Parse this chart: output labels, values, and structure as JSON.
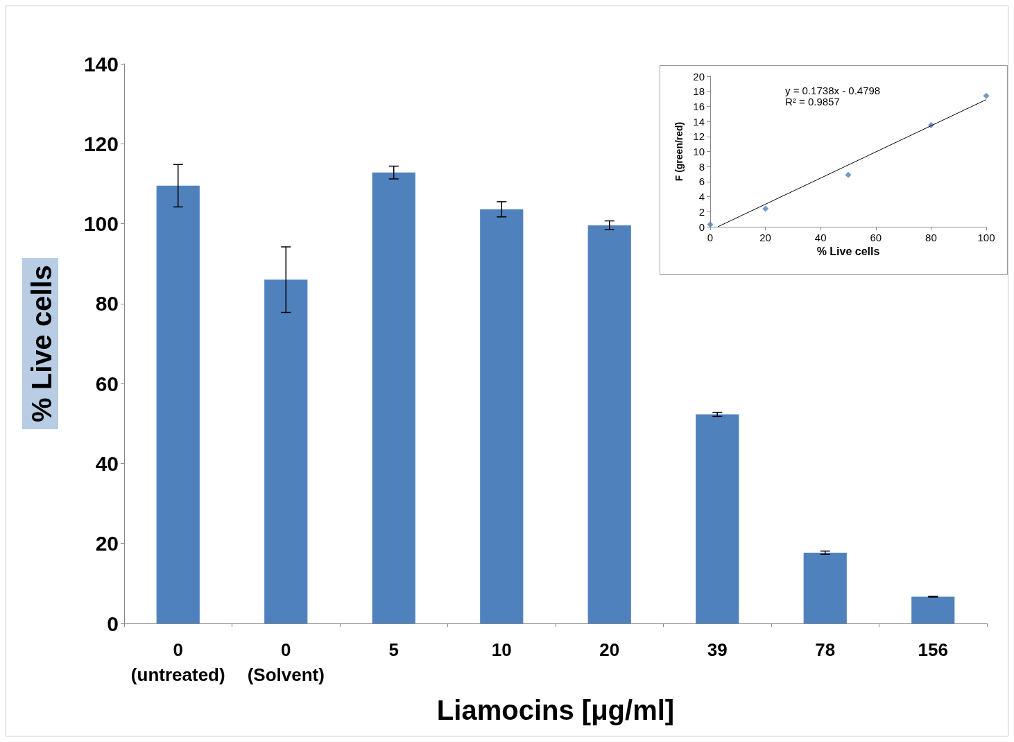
{
  "chart_data": [
    {
      "type": "bar",
      "categories": [
        "0\n(untreated)",
        "0\n(Solvent)",
        "5",
        "10",
        "20",
        "39",
        "78",
        "156"
      ],
      "xlabel": "Liamocins [μg/ml]",
      "ylabel": "% Live cells",
      "series": [
        {
          "color": "#4f81bd",
          "values": [
            109.5,
            86,
            112.8,
            103.6,
            99.6,
            52.3,
            17.7,
            6.7
          ],
          "errors": [
            5.3,
            8.2,
            1.6,
            1.9,
            1.1,
            0.5,
            0.4,
            0.1
          ]
        }
      ],
      "ylim": [
        0,
        140
      ],
      "yticks": [
        0,
        20,
        40,
        60,
        80,
        100,
        120,
        140
      ],
      "grid": false
    },
    {
      "type": "scatter",
      "xlabel": "% Live cells",
      "ylabel": "F (green/red)",
      "grid": false,
      "series": [
        {
          "marker": "diamond",
          "color": "#4f81bd",
          "x": [
            0,
            20,
            50,
            80,
            100
          ],
          "values": [
            0.3,
            2.4,
            6.9,
            13.5,
            17.4
          ]
        },
        {
          "type": "line",
          "marker": "none",
          "color": "#000000",
          "x": [
            2.76,
            100
          ],
          "values": [
            0,
            16.9
          ]
        }
      ],
      "annotations": [
        "y = 0.1738x - 0.4798",
        "R² = 0.9857"
      ],
      "xlim": [
        0,
        100
      ],
      "xticks": [
        0,
        20,
        40,
        60,
        80,
        100
      ],
      "ylim": [
        0,
        20
      ],
      "yticks": [
        0,
        2,
        4,
        6,
        8,
        10,
        12,
        14,
        16,
        18,
        20
      ]
    }
  ]
}
